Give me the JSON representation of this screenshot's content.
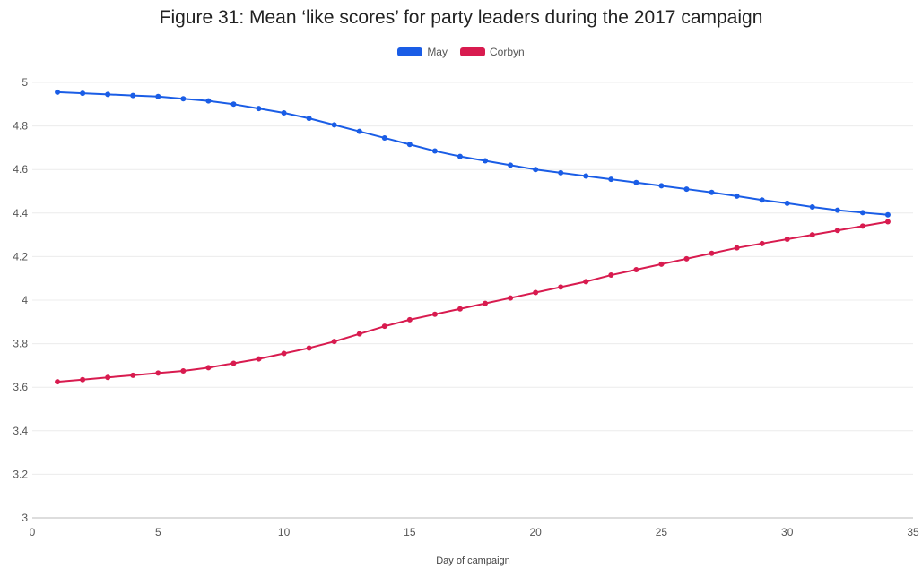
{
  "chart_data": {
    "type": "line",
    "title": "Figure 31: Mean ‘like scores’ for party leaders during the 2017 campaign",
    "xlabel": "Day of campaign",
    "ylabel": "",
    "xlim": [
      0,
      35
    ],
    "ylim": [
      3,
      5
    ],
    "x_ticks": [
      "0",
      "5",
      "10",
      "15",
      "20",
      "25",
      "30",
      "35"
    ],
    "y_ticks": [
      "3",
      "3.2",
      "3.4",
      "3.6",
      "3.8",
      "4",
      "4.2",
      "4.4",
      "4.6",
      "4.8",
      "5"
    ],
    "grid": true,
    "legend_position": "top-center",
    "x": [
      1,
      2,
      3,
      4,
      5,
      6,
      7,
      8,
      9,
      10,
      11,
      12,
      13,
      14,
      15,
      16,
      17,
      18,
      19,
      20,
      21,
      22,
      23,
      24,
      25,
      26,
      27,
      28,
      29,
      30,
      31,
      32,
      33,
      34
    ],
    "series": [
      {
        "name": "May",
        "color": "#1a5de6",
        "values": [
          4.955,
          4.95,
          4.945,
          4.94,
          4.935,
          4.925,
          4.915,
          4.9,
          4.88,
          4.86,
          4.835,
          4.805,
          4.775,
          4.745,
          4.715,
          4.685,
          4.66,
          4.64,
          4.62,
          4.6,
          4.585,
          4.57,
          4.555,
          4.54,
          4.525,
          4.51,
          4.495,
          4.478,
          4.46,
          4.445,
          4.428,
          4.413,
          4.402,
          4.392
        ]
      },
      {
        "name": "Corbyn",
        "color": "#d81b4f",
        "values": [
          3.625,
          3.635,
          3.645,
          3.655,
          3.665,
          3.675,
          3.69,
          3.71,
          3.73,
          3.755,
          3.78,
          3.81,
          3.845,
          3.88,
          3.91,
          3.935,
          3.96,
          3.985,
          4.01,
          4.035,
          4.06,
          4.085,
          4.115,
          4.14,
          4.165,
          4.19,
          4.215,
          4.24,
          4.26,
          4.28,
          4.3,
          4.32,
          4.34,
          4.36
        ]
      }
    ]
  }
}
